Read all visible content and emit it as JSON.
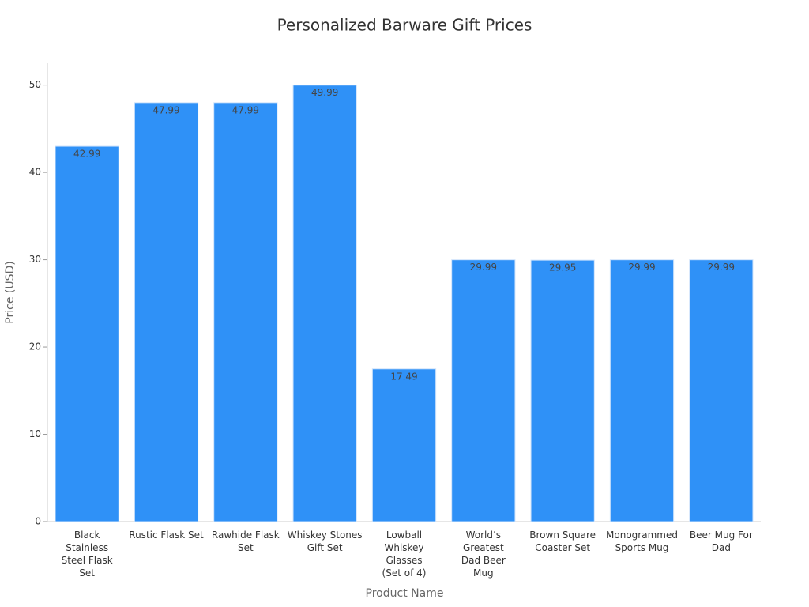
{
  "chart_data": {
    "type": "bar",
    "title": "Personalized Barware Gift Prices",
    "x_label": "Product Name",
    "y_label": "Price (USD)",
    "categories": [
      "Black Stainless Steel Flask Set",
      "Rustic Flask Set",
      "Rawhide Flask Set",
      "Whiskey Stones Gift Set",
      "Lowball Whiskey Glasses (Set of 4)",
      "World’s Greatest Dad Beer Mug",
      "Brown Square Coaster Set",
      "Monogrammed Sports Mug",
      "Beer Mug For Dad"
    ],
    "values": [
      42.99,
      47.99,
      47.99,
      49.99,
      17.49,
      29.99,
      29.95,
      29.99,
      29.99
    ],
    "color": "#2f91f7",
    "ylim": [
      0,
      52.5
    ],
    "yticks": [
      0,
      10,
      20,
      30,
      40,
      50
    ],
    "grid": false
  }
}
